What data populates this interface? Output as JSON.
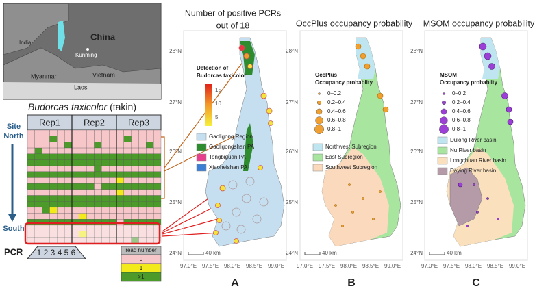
{
  "inset_map": {
    "india": "India",
    "china": "China",
    "kunming": "Kunming",
    "myanmar": "Myanmar",
    "vietnam": "Vietnam",
    "laos": "Laos"
  },
  "species": {
    "name": "Budorcas taxicolor",
    "common": "(takin)"
  },
  "grid": {
    "site": "Site",
    "north": "North",
    "south": "South",
    "reps": [
      "Rep1",
      "Rep2",
      "Rep3"
    ],
    "pcr_label": "PCR",
    "pcr_numbers": "1 2 3 4 5 6",
    "cells": [
      [
        0,
        0,
        0,
        0,
        0,
        0,
        0,
        0,
        0,
        0,
        0,
        0,
        0,
        0,
        0,
        0,
        0,
        0
      ],
      [
        0,
        0,
        0,
        2,
        0,
        0,
        0,
        0,
        0,
        0,
        0,
        0,
        0,
        2,
        0,
        0,
        0,
        0
      ],
      [
        0,
        0,
        0,
        0,
        0,
        2,
        0,
        0,
        0,
        2,
        0,
        0,
        0,
        0,
        0,
        0,
        2,
        0
      ],
      [
        0,
        2,
        0,
        0,
        0,
        0,
        0,
        0,
        0,
        0,
        0,
        0,
        0,
        0,
        0,
        0,
        0,
        0
      ],
      [
        2,
        2,
        2,
        2,
        2,
        2,
        2,
        2,
        2,
        2,
        2,
        2,
        2,
        2,
        2,
        2,
        2,
        2
      ],
      [
        2,
        2,
        2,
        2,
        2,
        2,
        2,
        2,
        2,
        2,
        2,
        2,
        2,
        2,
        2,
        2,
        2,
        2
      ],
      [
        0,
        0,
        0,
        0,
        0,
        0,
        0,
        0,
        0,
        2,
        0,
        0,
        0,
        0,
        0,
        0,
        0,
        0
      ],
      [
        2,
        2,
        2,
        2,
        2,
        2,
        2,
        2,
        2,
        2,
        2,
        2,
        2,
        2,
        2,
        2,
        2,
        2
      ],
      [
        0,
        0,
        0,
        0,
        0,
        0,
        0,
        0,
        0,
        0,
        0,
        0,
        1,
        0,
        0,
        0,
        0,
        0
      ],
      [
        2,
        2,
        2,
        2,
        2,
        2,
        2,
        2,
        2,
        0,
        2,
        2,
        2,
        2,
        2,
        2,
        2,
        2
      ],
      [
        0,
        0,
        0,
        0,
        0,
        0,
        0,
        0,
        0,
        0,
        0,
        0,
        1,
        0,
        0,
        0,
        0,
        0
      ],
      [
        2,
        2,
        2,
        2,
        2,
        2,
        2,
        2,
        2,
        2,
        2,
        2,
        2,
        2,
        2,
        2,
        2,
        2
      ],
      [
        2,
        2,
        2,
        2,
        2,
        2,
        2,
        2,
        2,
        2,
        2,
        2,
        2,
        2,
        2,
        2,
        2,
        2
      ],
      [
        0,
        0,
        2,
        1,
        0,
        0,
        0,
        0,
        0,
        0,
        0,
        0,
        0,
        0,
        0,
        0,
        0,
        0
      ],
      [
        0,
        0,
        0,
        0,
        0,
        0,
        0,
        1,
        0,
        0,
        0,
        0,
        0,
        0,
        0,
        0,
        0,
        0
      ],
      [
        2,
        2,
        2,
        2,
        2,
        2,
        2,
        2,
        2,
        2,
        2,
        2,
        0,
        2,
        2,
        2,
        2,
        2
      ],
      [
        0,
        0,
        0,
        0,
        0,
        0,
        0,
        0,
        0,
        0,
        0,
        0,
        0,
        0,
        0,
        0,
        0,
        0
      ],
      [
        0,
        0,
        0,
        0,
        0,
        0,
        0,
        1,
        0,
        0,
        0,
        0,
        0,
        0,
        0,
        0,
        0,
        0
      ],
      [
        0,
        0,
        0,
        0,
        0,
        0,
        0,
        0,
        0,
        0,
        0,
        0,
        0,
        0,
        2,
        0,
        0,
        0
      ]
    ]
  },
  "read_legend": {
    "title": "read number",
    "entries": [
      {
        "label": "0",
        "color": "#f7c6c9"
      },
      {
        "label": "1",
        "color": "#f2ea1a"
      },
      {
        "label": ">1",
        "color": "#4c9a2a"
      }
    ]
  },
  "axes": {
    "lat": [
      "28°N",
      "27°N",
      "26°N",
      "25°N",
      "24°N"
    ],
    "lon": [
      "97.0°E",
      "97.5°E",
      "98.0°E",
      "98.5°E",
      "99.0°E"
    ],
    "scale": "40 km"
  },
  "panels": [
    {
      "title": [
        "Number of positive PCRs",
        "out of 18"
      ],
      "letter": "A",
      "legend_title": [
        "Detection of",
        "Budorcas taxicolor"
      ],
      "colorbar_ticks": [
        "15",
        "10",
        "5"
      ],
      "entries": [
        {
          "label": "Gaoligong Region",
          "color": "#c6dff0"
        },
        {
          "label": "Gaoligongshan PA",
          "color": "#2e8b2e"
        },
        {
          "label": "Tongbiguan PA",
          "color": "#e83e8c"
        },
        {
          "label": "Xiaoheishan PA",
          "color": "#3a7fd5"
        }
      ]
    },
    {
      "title": [
        "OccPlus occupancy probability"
      ],
      "letter": "B",
      "legend_title": [
        "OccPlus",
        "Occupancy probablity"
      ],
      "dot_color": "#f0a030",
      "dots": [
        "0–0.2",
        "0.2–0.4",
        "0.4–0.6",
        "0.6–0.8",
        "0.8–1"
      ],
      "entries": [
        {
          "label": "Northwest Subregion",
          "color": "#bfe6f0"
        },
        {
          "label": "East Subregion",
          "color": "#a8e6a0"
        },
        {
          "label": "Southwest Subregion",
          "color": "#fad9bd"
        }
      ]
    },
    {
      "title": [
        "MSOM occupancy probability"
      ],
      "letter": "C",
      "legend_title": [
        "MSOM",
        "Occupancy probablity"
      ],
      "dot_color": "#9b3fd6",
      "dots": [
        "0–0.2",
        "0.2–0.4",
        "0.4–0.6",
        "0.6–0.8",
        "0.8–1"
      ],
      "entries": [
        {
          "label": "Dulong River basin",
          "color": "#bfe6f0"
        },
        {
          "label": "Nu River basin",
          "color": "#a8e6a0"
        },
        {
          "label": "Longchuan River basin",
          "color": "#fae0bd"
        },
        {
          "label": "Daying River basin",
          "color": "#b59aa8"
        }
      ]
    }
  ]
}
